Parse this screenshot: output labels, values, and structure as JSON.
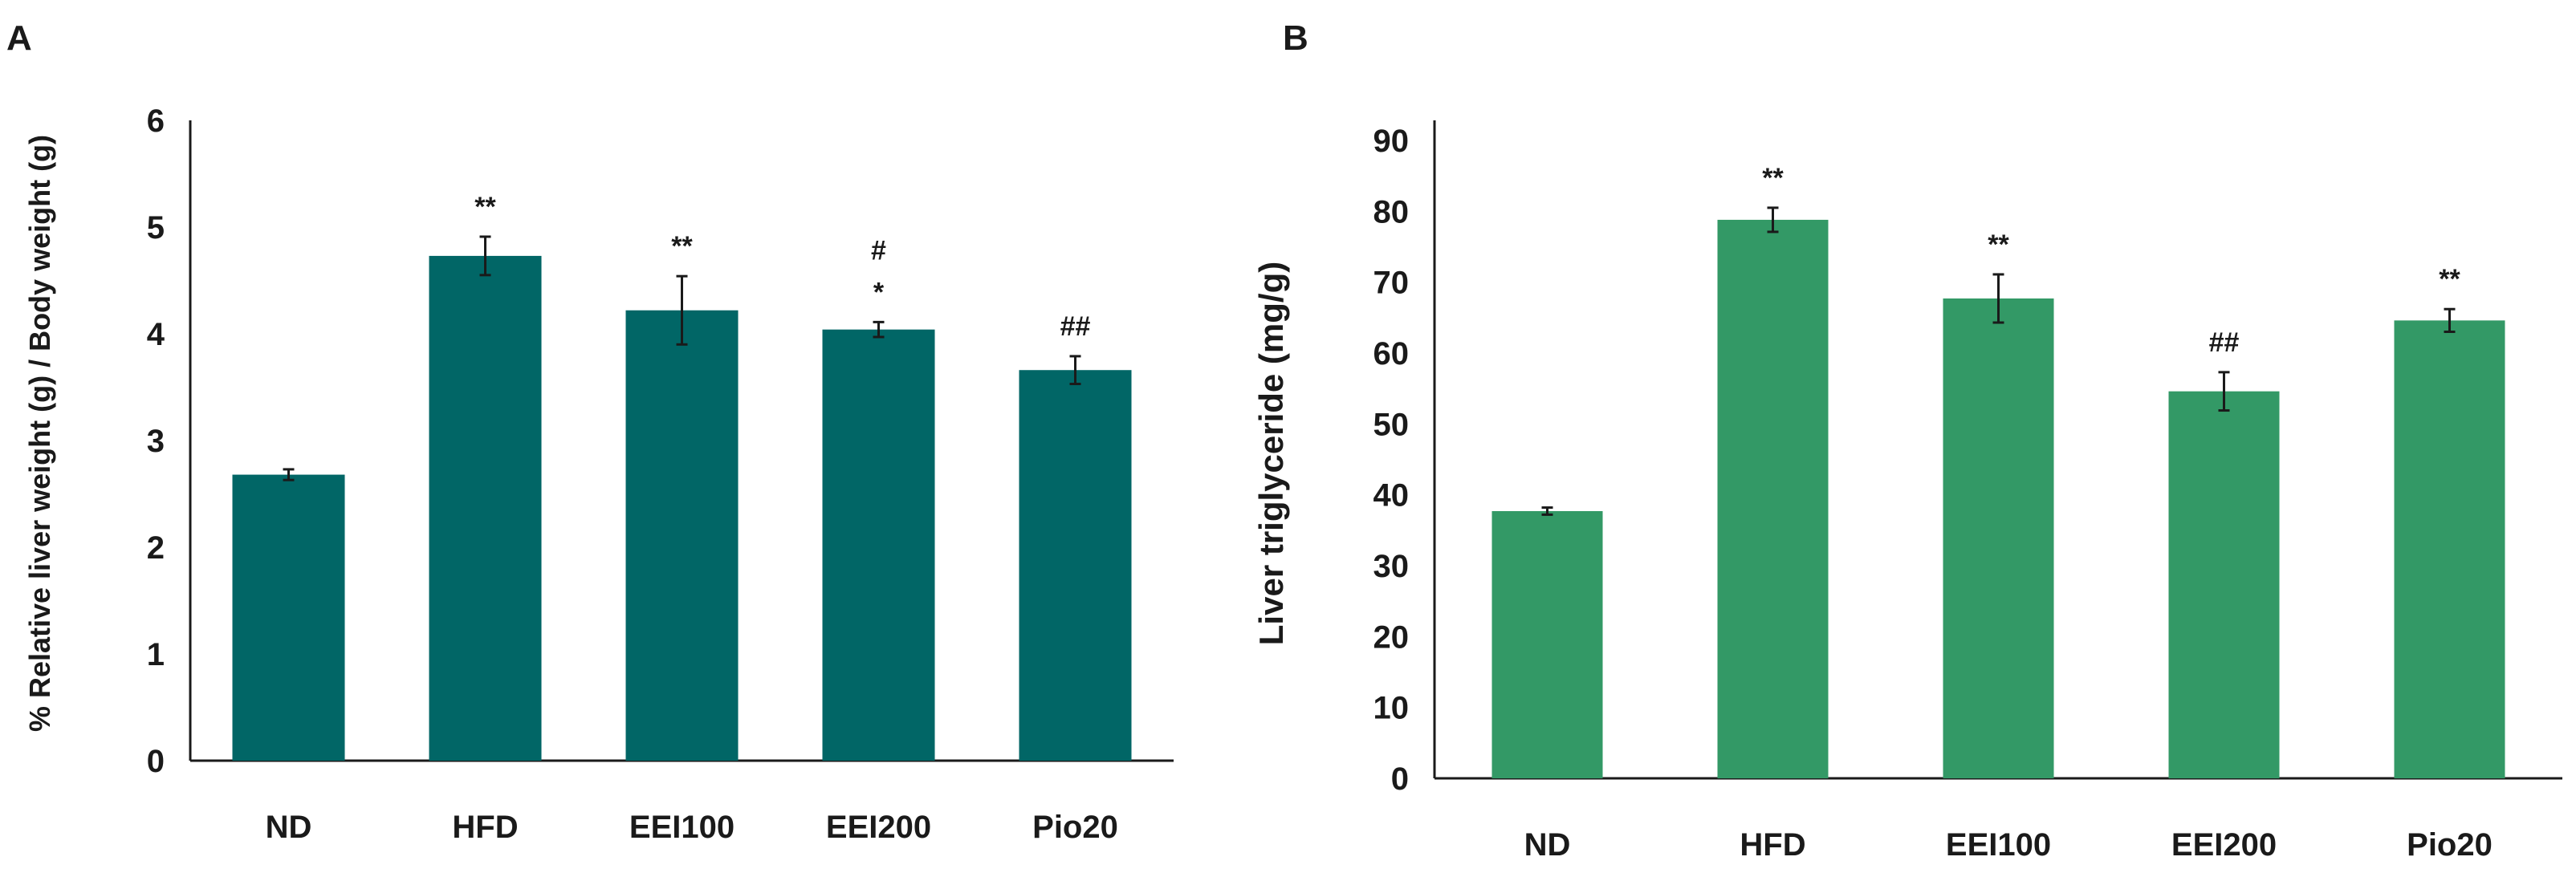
{
  "chart_data": [
    {
      "type": "bar",
      "panel": "A",
      "title": "",
      "xlabel": "",
      "ylabel": "% Relative liver weight (g) / Body weight (g)",
      "categories": [
        "ND",
        "HFD",
        "EEI100",
        "EEI200",
        "Pio20"
      ],
      "values": [
        2.68,
        4.73,
        4.22,
        4.04,
        3.66
      ],
      "errors": [
        0.05,
        0.18,
        0.32,
        0.07,
        0.13
      ],
      "annotations": [
        [
          ""
        ],
        [
          "**"
        ],
        [
          "**"
        ],
        [
          "*",
          "#"
        ],
        [
          "##"
        ]
      ],
      "ylim": [
        0,
        6
      ],
      "yticks": [
        "0",
        "1",
        "2",
        "3",
        "4",
        "5",
        "6"
      ],
      "grid": false,
      "bar_color": "#016666"
    },
    {
      "type": "bar",
      "panel": "B",
      "title": "",
      "xlabel": "",
      "ylabel": "Liver triglyceride (mg/g)",
      "categories": [
        "ND",
        "HFD",
        "EEI100",
        "EEI200",
        "Pio20"
      ],
      "values": [
        37.7,
        78.8,
        67.7,
        54.6,
        64.6
      ],
      "errors": [
        0.5,
        1.7,
        3.4,
        2.7,
        1.6
      ],
      "annotations": [
        [
          ""
        ],
        [
          "**"
        ],
        [
          "**"
        ],
        [
          "##"
        ],
        [
          "**"
        ]
      ],
      "ylim": [
        0,
        90
      ],
      "yticks": [
        "0",
        "10",
        "20",
        "30",
        "40",
        "50",
        "60",
        "70",
        "80",
        "90"
      ],
      "grid": false,
      "bar_color": "#339966"
    }
  ]
}
